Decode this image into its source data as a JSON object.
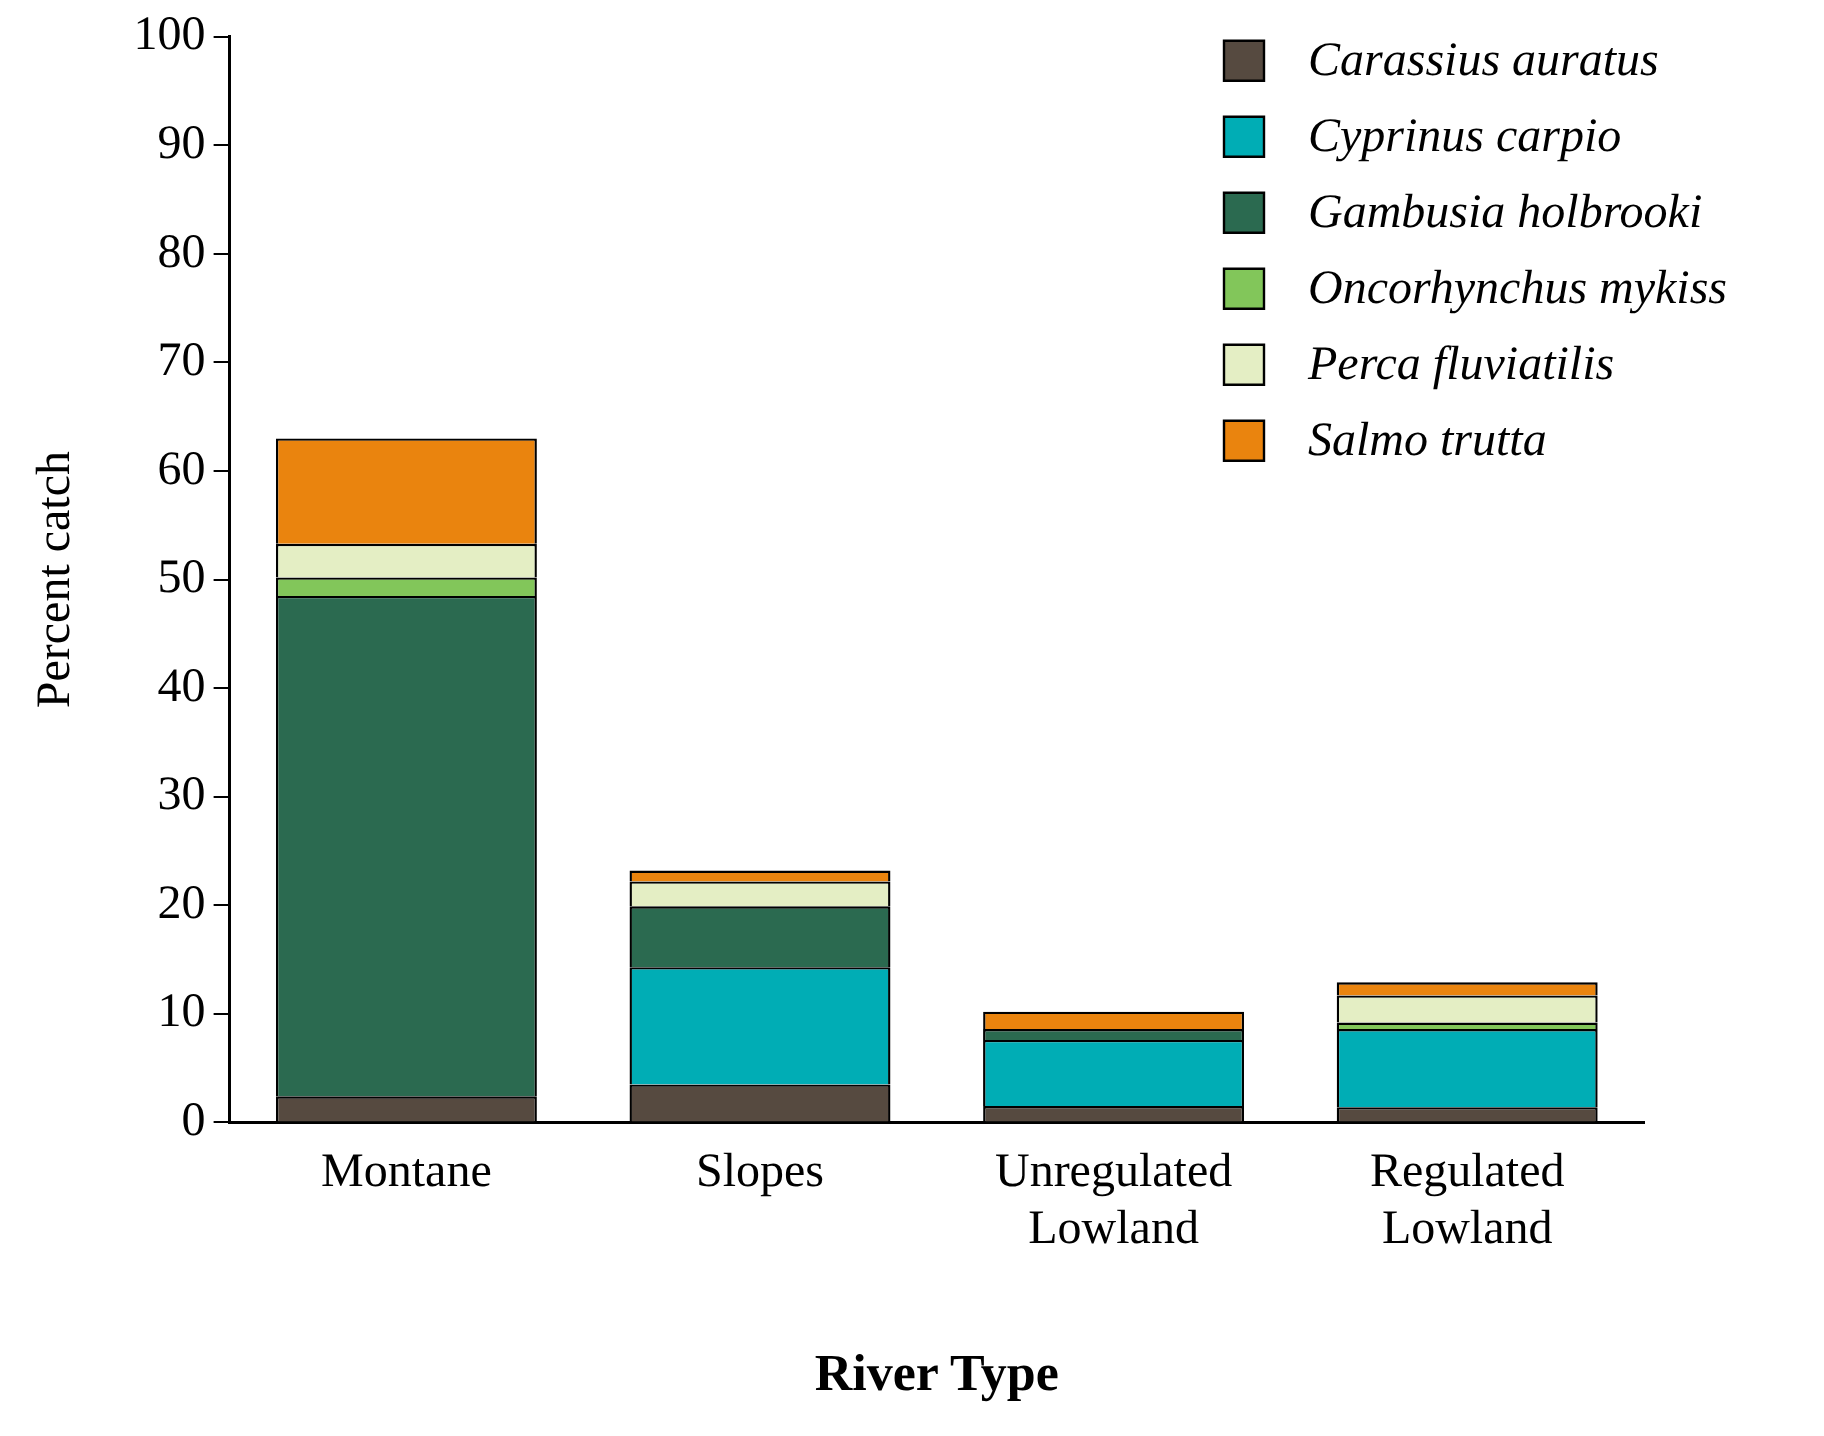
{
  "chart_data": {
    "type": "bar",
    "stacked": true,
    "xlabel": "River Type",
    "ylabel": "Percent catch",
    "categories": [
      "Montane",
      "Slopes",
      "Unregulated Lowland",
      "Regulated Lowland"
    ],
    "ylim": [
      0,
      100
    ],
    "yticks": [
      0,
      10,
      20,
      30,
      40,
      50,
      60,
      70,
      80,
      90,
      100
    ],
    "grid": false,
    "legend": "top right",
    "series": [
      {
        "name": "Carassius auratus",
        "color": "#564a40",
        "values": [
          2.4,
          3.5,
          1.5,
          1.4
        ]
      },
      {
        "name": "Cyprinus carpio",
        "color": "#00adb5",
        "values": [
          0,
          10.8,
          6.1,
          7.2
        ]
      },
      {
        "name": "Gambusia holbrooki",
        "color": "#2b6a50",
        "values": [
          46.1,
          5.6,
          1.0,
          0
        ]
      },
      {
        "name": "Oncorhynchus mykiss",
        "color": "#82c65a",
        "values": [
          1.7,
          0,
          0,
          0.6
        ]
      },
      {
        "name": "Perca fluviatilis",
        "color": "#e4eec4",
        "values": [
          3.1,
          2.3,
          0,
          2.5
        ]
      },
      {
        "name": "Salmo trutta",
        "color": "#ea840e",
        "values": [
          9.7,
          1.0,
          1.6,
          1.2
        ]
      }
    ]
  }
}
